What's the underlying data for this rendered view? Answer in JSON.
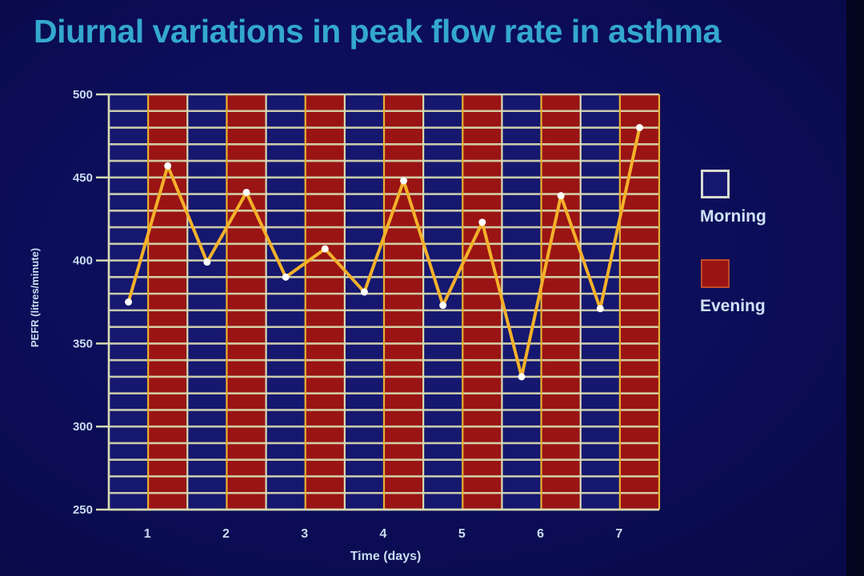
{
  "title": "Diurnal variations in peak flow rate in asthma",
  "colors": {
    "morning_fill": "#16176f",
    "evening_fill": "#9a1414",
    "grid": "#d8dbb2",
    "evening_edge": "#e8b030",
    "line": "#f3b12a",
    "point": "#ffffff",
    "title": "#34a8cf",
    "legend_text": "#cfe2f6"
  },
  "legend": {
    "morning": "Morning",
    "evening": "Evening"
  },
  "chart_data": {
    "type": "line",
    "title": "Diurnal variations in peak flow rate in asthma",
    "xlabel": "Time (days)",
    "ylabel": "PEFR (litres/minute)",
    "ylim": [
      250,
      500
    ],
    "yticks": [
      250,
      300,
      350,
      400,
      450,
      500
    ],
    "ygrid_step": 10,
    "categories": [
      "1",
      "2",
      "3",
      "4",
      "5",
      "6",
      "7"
    ],
    "bands": [
      "Morning",
      "Evening"
    ],
    "series": [
      {
        "name": "PEFR",
        "x": [
          "Day 1 Morning",
          "Day 1 Evening",
          "Day 2 Morning",
          "Day 2 Evening",
          "Day 3 Morning",
          "Day 3 Evening",
          "Day 4 Morning",
          "Day 4 Evening",
          "Day 5 Morning",
          "Day 5 Evening",
          "Day 6 Morning",
          "Day 6 Evening",
          "Day 7 Morning",
          "Day 7 Evening"
        ],
        "values": [
          375,
          457,
          399,
          441,
          390,
          407,
          381,
          448,
          373,
          423,
          330,
          439,
          371,
          480
        ]
      }
    ]
  }
}
